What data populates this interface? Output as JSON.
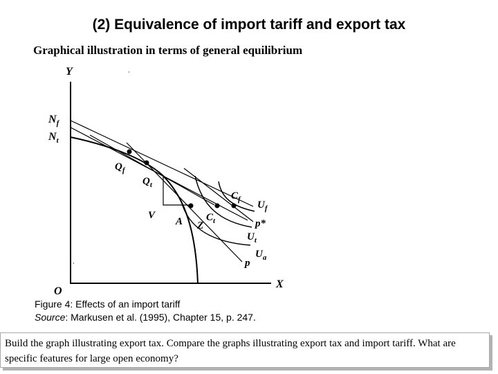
{
  "title": "(2) Equivalence of import tariff and export tax",
  "subtitle": "Graphical illustration in terms of general equilibrium",
  "figure": {
    "labels": {
      "y_axis": "Y",
      "x_axis": "X",
      "origin": "O",
      "nf": "N",
      "nf_sub": "f",
      "nt": "N",
      "nt_sub": "t",
      "qf": "Q",
      "qf_sub": "f",
      "qt": "Q",
      "qt_sub": "t",
      "v": "V",
      "a": "A",
      "z": "Z",
      "ct": "C",
      "ct_sub": "t",
      "cf": "C",
      "cf_sub": "f",
      "uf": "U",
      "uf_sub": "f",
      "pstar": "p*",
      "ut": "U",
      "ut_sub": "t",
      "ua": "U",
      "ua_sub": "a",
      "p": "p"
    },
    "caption_line1": "Figure 4: Effects of an import tariff",
    "caption_source_label": "Source",
    "caption_source_text": ": Markusen et al. (1995), Chapter 15, p. 247."
  },
  "task": "Build the graph illustrating export tax. Compare the graphs illustrating export tax and import tariff. What are specific features for large open economy?"
}
